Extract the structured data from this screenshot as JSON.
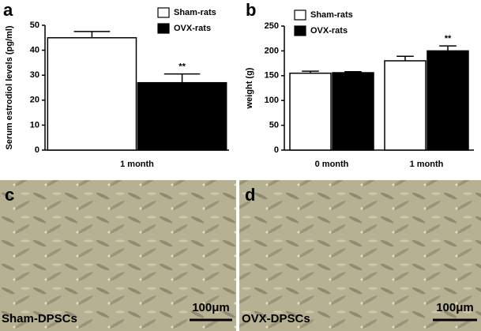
{
  "chart_data": [
    {
      "type": "bar",
      "panel": "a",
      "ylabel": "Serum estrodiol levels (pg/ml)",
      "categories": [
        "1 month"
      ],
      "series": [
        {
          "name": "Sham-rats",
          "color": "#ffffff",
          "values": [
            45
          ],
          "errors": [
            2.5
          ]
        },
        {
          "name": "OVX-rats",
          "color": "#000000",
          "values": [
            27
          ],
          "errors": [
            3.5
          ]
        }
      ],
      "annotation": "**",
      "ylim": [
        0,
        50
      ],
      "yticks": [
        0,
        10,
        20,
        30,
        40,
        50
      ]
    },
    {
      "type": "bar",
      "panel": "b",
      "ylabel": "weight (g)",
      "categories": [
        "0 month",
        "1 month"
      ],
      "series": [
        {
          "name": "Sham-rats",
          "color": "#ffffff",
          "values": [
            155,
            180
          ],
          "errors": [
            4,
            9
          ]
        },
        {
          "name": "OVX-rats",
          "color": "#000000",
          "values": [
            156,
            200
          ],
          "errors": [
            2,
            10
          ]
        }
      ],
      "annotation": "**",
      "ylim": [
        0,
        250
      ],
      "yticks": [
        0,
        50,
        100,
        150,
        200,
        250
      ]
    }
  ],
  "images": [
    {
      "panel": "c",
      "caption": "Sham-DPSCs",
      "scale": "100μm"
    },
    {
      "panel": "d",
      "caption": "OVX-DPSCs",
      "scale": "100μm"
    }
  ]
}
